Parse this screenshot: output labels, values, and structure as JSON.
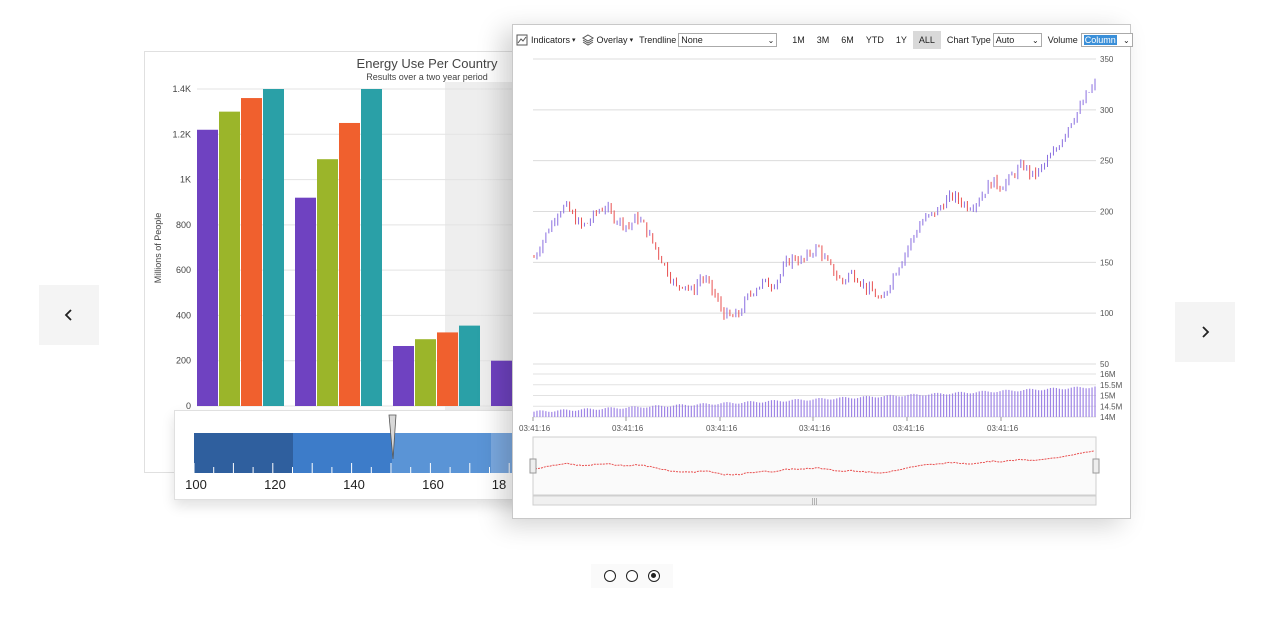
{
  "carousel": {
    "prev_icon": "chevron-left-icon",
    "next_icon": "chevron-right-icon",
    "dots": [
      {
        "active": false
      },
      {
        "active": false
      },
      {
        "active": true
      }
    ]
  },
  "bar_chart": {
    "colors": [
      "#6f42c1",
      "#9bb52a",
      "#f0602e",
      "#2aa0a7"
    ],
    "background_shade": "#eeeeee"
  },
  "gauge": {
    "ticks": [
      "100",
      "120",
      "140",
      "160",
      "18"
    ],
    "band_colors": [
      "#2f5f9e",
      "#3d7cc9",
      "#5a94d6",
      "#7ba9e0"
    ]
  },
  "stock": {
    "toolbar": {
      "indicators": "Indicators",
      "overlay": "Overlay",
      "trendline_label": "Trendline",
      "trendline_value": "None",
      "ranges": [
        "1M",
        "3M",
        "6M",
        "YTD",
        "1Y",
        "ALL"
      ],
      "active_range": "ALL",
      "chart_type_label": "Chart Type",
      "chart_type_value": "Auto",
      "volume_label": "Volume",
      "volume_value": "Column"
    },
    "up_color": "#8a6fe0",
    "down_color": "#e85050",
    "volume_color": "#9f85e6"
  },
  "chart_data": [
    {
      "type": "bar",
      "title": "Energy Use Per Country",
      "subtitle": "Results over a two year period",
      "ylabel": "Millions of People",
      "xlabel": "",
      "ylim": [
        0,
        1400
      ],
      "yticks": [
        "0",
        "200",
        "400",
        "600",
        "800",
        "1K",
        "1.2K",
        "1.4K"
      ],
      "ytick_values": [
        0,
        200,
        400,
        600,
        800,
        1000,
        1200,
        1400
      ],
      "categories": [
        "",
        "",
        "",
        ""
      ],
      "series": [
        {
          "values": [
            1220,
            920,
            265,
            200
          ]
        },
        {
          "values": [
            1300,
            1090,
            295,
            0
          ]
        },
        {
          "values": [
            1360,
            1250,
            325,
            0
          ]
        },
        {
          "values": [
            1400,
            1400,
            355,
            0
          ]
        }
      ]
    },
    {
      "type": "line",
      "ylim": [
        50,
        350
      ],
      "yticks": [
        "50",
        "100",
        "150",
        "200",
        "250",
        "300",
        "350"
      ],
      "ytick_values": [
        50,
        100,
        150,
        200,
        250,
        300,
        350
      ],
      "xticks": [
        "03:41:16",
        "03:41:16",
        "03:41:16",
        "03:41:16",
        "03:41:16",
        "03:41:16"
      ],
      "price_series": [
        155,
        170,
        185,
        200,
        205,
        195,
        185,
        190,
        200,
        205,
        195,
        190,
        185,
        195,
        185,
        170,
        155,
        140,
        125,
        130,
        120,
        135,
        130,
        115,
        100,
        95,
        100,
        115,
        125,
        130,
        128,
        135,
        150,
        155,
        150,
        160,
        165,
        150,
        140,
        130,
        140,
        135,
        125,
        120,
        110,
        130,
        145,
        160,
        175,
        190,
        195,
        200,
        210,
        215,
        210,
        205,
        210,
        220,
        230,
        225,
        230,
        240,
        245,
        235,
        240,
        250,
        260,
        275,
        290,
        300,
        315,
        325
      ],
      "volume": {
        "yticks": [
          "14M",
          "14.5M",
          "15M",
          "15.5M",
          "16M"
        ],
        "ytick_values": [
          14,
          14.5,
          15,
          15.5,
          16
        ],
        "ylim": [
          14,
          16
        ]
      }
    }
  ]
}
